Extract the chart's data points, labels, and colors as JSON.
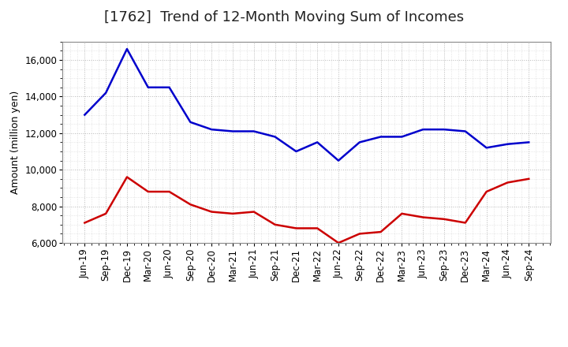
{
  "title": "[1762]  Trend of 12-Month Moving Sum of Incomes",
  "ylabel": "Amount (million yen)",
  "background_color": "#ffffff",
  "plot_background": "#ffffff",
  "grid_color": "#999999",
  "x_labels": [
    "Jun-19",
    "Sep-19",
    "Dec-19",
    "Mar-20",
    "Jun-20",
    "Sep-20",
    "Dec-20",
    "Mar-21",
    "Jun-21",
    "Sep-21",
    "Dec-21",
    "Mar-22",
    "Jun-22",
    "Sep-22",
    "Dec-22",
    "Mar-23",
    "Jun-23",
    "Sep-23",
    "Dec-23",
    "Mar-24",
    "Jun-24",
    "Sep-24"
  ],
  "ordinary_income": [
    13000,
    14200,
    16600,
    14500,
    14500,
    12600,
    12200,
    12100,
    12100,
    11800,
    11000,
    11500,
    10500,
    11500,
    11800,
    11800,
    12200,
    12200,
    12100,
    11200,
    11400,
    11500
  ],
  "net_income": [
    7100,
    7600,
    9600,
    8800,
    8800,
    8100,
    7700,
    7600,
    7700,
    7000,
    6800,
    6800,
    6000,
    6500,
    6600,
    7600,
    7400,
    7300,
    7100,
    8800,
    9300,
    9500
  ],
  "ordinary_color": "#0000cc",
  "net_color": "#cc0000",
  "ylim_min": 6000,
  "ylim_max": 17000,
  "yticks": [
    6000,
    8000,
    10000,
    12000,
    14000,
    16000
  ],
  "line_width": 1.8,
  "title_fontsize": 13,
  "ylabel_fontsize": 9,
  "tick_fontsize": 8.5
}
